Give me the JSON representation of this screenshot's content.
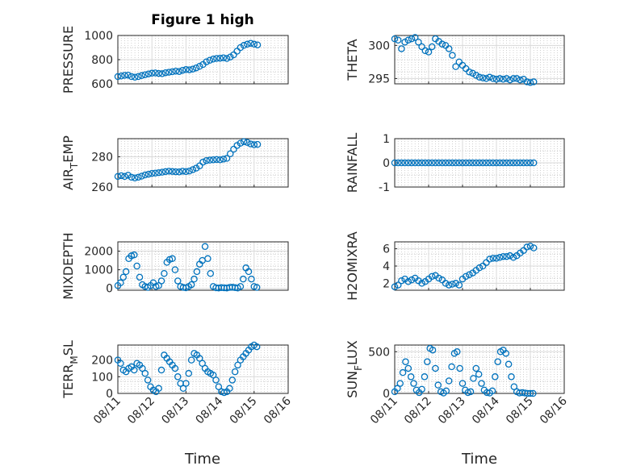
{
  "figure_title": "Figure 1 high",
  "colors": {
    "series": "#0072BD",
    "axis": "#262626"
  },
  "shared_x": {
    "label": "Time",
    "ticks": [
      {
        "value": 0,
        "label": "08/11"
      },
      {
        "value": 1,
        "label": "08/12"
      },
      {
        "value": 2,
        "label": "08/13"
      },
      {
        "value": 3,
        "label": "08/14"
      },
      {
        "value": 4,
        "label": "08/15"
      },
      {
        "value": 5,
        "label": "08/16"
      }
    ],
    "units": "days from 08/11"
  },
  "chart_data": [
    {
      "type": "scatter",
      "title": "Figure 1 high",
      "ylabel": "PRESSURE",
      "ylabel_parts": [
        "PRESSURE"
      ],
      "ylim": [
        600,
        1000
      ],
      "yticks": [
        600,
        800,
        1000
      ],
      "x": [
        0,
        0.1,
        0.2,
        0.3,
        0.4,
        0.5,
        0.6,
        0.7,
        0.8,
        0.9,
        1.0,
        1.1,
        1.2,
        1.3,
        1.4,
        1.5,
        1.6,
        1.7,
        1.8,
        1.9,
        2.0,
        2.1,
        2.2,
        2.3,
        2.4,
        2.5,
        2.6,
        2.7,
        2.8,
        2.9,
        3.0,
        3.1,
        3.2,
        3.3,
        3.4,
        3.5,
        3.6,
        3.7,
        3.8,
        3.9,
        4.0,
        4.1
      ],
      "y": [
        660,
        665,
        670,
        672,
        660,
        655,
        660,
        668,
        675,
        682,
        688,
        690,
        686,
        684,
        692,
        696,
        700,
        705,
        702,
        712,
        718,
        716,
        722,
        732,
        745,
        760,
        782,
        795,
        805,
        810,
        812,
        815,
        810,
        822,
        840,
        870,
        900,
        918,
        928,
        935,
        928,
        922
      ]
    },
    {
      "type": "scatter",
      "ylabel": "THETA",
      "ylabel_parts": [
        "THETA"
      ],
      "ylim": [
        294.2,
        301.5
      ],
      "yticks": [
        295,
        300
      ],
      "x": [
        0,
        0.1,
        0.2,
        0.3,
        0.4,
        0.5,
        0.6,
        0.7,
        0.8,
        0.9,
        1.0,
        1.1,
        1.2,
        1.3,
        1.4,
        1.5,
        1.6,
        1.7,
        1.8,
        1.9,
        2.0,
        2.1,
        2.2,
        2.3,
        2.4,
        2.5,
        2.6,
        2.7,
        2.8,
        2.9,
        3.0,
        3.1,
        3.2,
        3.3,
        3.4,
        3.5,
        3.6,
        3.7,
        3.8,
        3.9,
        4.0,
        4.1
      ],
      "y": [
        301,
        300.8,
        299.5,
        300.5,
        300.8,
        301,
        301.2,
        300.5,
        299.8,
        299.2,
        299,
        299.8,
        301,
        300.6,
        300.2,
        300,
        299.5,
        298.5,
        296.8,
        297.5,
        297,
        296.5,
        296,
        295.8,
        295.5,
        295.2,
        295.1,
        295,
        295.2,
        295,
        294.9,
        295,
        294.9,
        295,
        294.8,
        295,
        295,
        294.8,
        294.9,
        294.5,
        294.4,
        294.5
      ]
    },
    {
      "type": "scatter",
      "ylabel": "AIR_TEMP",
      "ylabel_parts": [
        "AIR",
        "T",
        "EMP"
      ],
      "ylim": [
        260,
        292
      ],
      "yticks": [
        260,
        280
      ],
      "x": [
        0,
        0.1,
        0.2,
        0.3,
        0.4,
        0.5,
        0.6,
        0.7,
        0.8,
        0.9,
        1.0,
        1.1,
        1.2,
        1.3,
        1.4,
        1.5,
        1.6,
        1.7,
        1.8,
        1.9,
        2.0,
        2.1,
        2.2,
        2.3,
        2.4,
        2.5,
        2.6,
        2.7,
        2.8,
        2.9,
        3.0,
        3.1,
        3.2,
        3.3,
        3.4,
        3.5,
        3.6,
        3.7,
        3.8,
        3.9,
        4.0,
        4.1
      ],
      "y": [
        267,
        267.5,
        267,
        267.8,
        266.5,
        266,
        266.5,
        267.2,
        268,
        268.5,
        269,
        269.2,
        269.5,
        269.8,
        270.2,
        270.5,
        270.3,
        270.1,
        270,
        270.5,
        270.2,
        270.6,
        271.5,
        272.5,
        274,
        276.5,
        277.5,
        277.8,
        278,
        278.2,
        278,
        278.5,
        279,
        282,
        285,
        287.5,
        289,
        290,
        289.5,
        288.5,
        288,
        288.2
      ]
    },
    {
      "type": "scatter",
      "ylabel": "RAINFALL",
      "ylabel_parts": [
        "RAINFALL"
      ],
      "ylim": [
        -1,
        1
      ],
      "yticks": [
        -1,
        0,
        1
      ],
      "x": [
        0,
        0.1,
        0.2,
        0.3,
        0.4,
        0.5,
        0.6,
        0.7,
        0.8,
        0.9,
        1.0,
        1.1,
        1.2,
        1.3,
        1.4,
        1.5,
        1.6,
        1.7,
        1.8,
        1.9,
        2.0,
        2.1,
        2.2,
        2.3,
        2.4,
        2.5,
        2.6,
        2.7,
        2.8,
        2.9,
        3.0,
        3.1,
        3.2,
        3.3,
        3.4,
        3.5,
        3.6,
        3.7,
        3.8,
        3.9,
        4.0,
        4.1
      ],
      "y": [
        0,
        0,
        0,
        0,
        0,
        0,
        0,
        0,
        0,
        0,
        0,
        0,
        0,
        0,
        0,
        0,
        0,
        0,
        0,
        0,
        0,
        0,
        0,
        0,
        0,
        0,
        0,
        0,
        0,
        0,
        0,
        0,
        0,
        0,
        0,
        0,
        0,
        0,
        0,
        0,
        0,
        0
      ]
    },
    {
      "type": "scatter",
      "ylabel": "MIXDEPTH",
      "ylabel_parts": [
        "MIXDEPTH"
      ],
      "ylim": [
        -100,
        2500
      ],
      "yticks": [
        0,
        1000,
        2000
      ],
      "x": [
        0,
        0.08,
        0.16,
        0.24,
        0.32,
        0.4,
        0.48,
        0.56,
        0.64,
        0.72,
        0.8,
        0.88,
        0.96,
        1.04,
        1.12,
        1.2,
        1.28,
        1.36,
        1.44,
        1.52,
        1.6,
        1.68,
        1.76,
        1.84,
        1.92,
        2.0,
        2.08,
        2.16,
        2.24,
        2.32,
        2.4,
        2.48,
        2.56,
        2.64,
        2.72,
        2.8,
        2.88,
        2.96,
        3.04,
        3.12,
        3.2,
        3.28,
        3.36,
        3.44,
        3.52,
        3.6,
        3.68,
        3.76,
        3.84,
        3.92,
        4.0,
        4.08
      ],
      "y": [
        150,
        300,
        600,
        900,
        1600,
        1750,
        1800,
        1200,
        600,
        200,
        100,
        50,
        150,
        300,
        100,
        150,
        400,
        800,
        1400,
        1550,
        1600,
        1000,
        400,
        100,
        50,
        30,
        100,
        200,
        500,
        900,
        1300,
        1500,
        2250,
        1600,
        800,
        100,
        30,
        20,
        40,
        30,
        20,
        50,
        60,
        40,
        20,
        100,
        500,
        1100,
        900,
        500,
        100,
        50
      ]
    },
    {
      "type": "scatter",
      "ylabel": "H2OMIXRA",
      "ylabel_parts": [
        "H2OMIXRA"
      ],
      "ylim": [
        1.2,
        6.8
      ],
      "yticks": [
        2,
        4,
        6
      ],
      "x": [
        0,
        0.1,
        0.2,
        0.3,
        0.4,
        0.5,
        0.6,
        0.7,
        0.8,
        0.9,
        1.0,
        1.1,
        1.2,
        1.3,
        1.4,
        1.5,
        1.6,
        1.7,
        1.8,
        1.9,
        2.0,
        2.1,
        2.2,
        2.3,
        2.4,
        2.5,
        2.6,
        2.7,
        2.8,
        2.9,
        3.0,
        3.1,
        3.2,
        3.3,
        3.4,
        3.5,
        3.6,
        3.7,
        3.8,
        3.9,
        4.0,
        4.1
      ],
      "y": [
        1.6,
        1.8,
        2.3,
        2.5,
        2.2,
        2.4,
        2.6,
        2.3,
        2.0,
        2.2,
        2.5,
        2.8,
        2.9,
        2.6,
        2.4,
        2.0,
        1.8,
        1.9,
        2.0,
        1.8,
        2.5,
        2.8,
        3.0,
        3.2,
        3.5,
        3.8,
        4.0,
        4.4,
        4.8,
        4.9,
        4.9,
        5.0,
        5.1,
        5.1,
        5.2,
        5.0,
        5.2,
        5.5,
        5.8,
        6.2,
        6.3,
        6.1
      ]
    },
    {
      "type": "scatter",
      "ylabel": "TERR_MSL",
      "ylabel_parts": [
        "TERR",
        "M",
        "SL"
      ],
      "ylim": [
        0,
        290
      ],
      "yticks": [
        0,
        100,
        200
      ],
      "x": [
        0,
        0.08,
        0.16,
        0.24,
        0.32,
        0.4,
        0.48,
        0.56,
        0.64,
        0.72,
        0.8,
        0.88,
        0.96,
        1.04,
        1.12,
        1.2,
        1.28,
        1.36,
        1.44,
        1.52,
        1.6,
        1.68,
        1.76,
        1.84,
        1.92,
        2.0,
        2.08,
        2.16,
        2.24,
        2.32,
        2.4,
        2.48,
        2.56,
        2.64,
        2.72,
        2.8,
        2.88,
        2.96,
        3.04,
        3.12,
        3.2,
        3.28,
        3.36,
        3.44,
        3.52,
        3.6,
        3.68,
        3.76,
        3.84,
        3.92,
        4.0,
        4.08
      ],
      "y": [
        200,
        180,
        140,
        130,
        150,
        160,
        140,
        180,
        170,
        150,
        120,
        80,
        40,
        20,
        10,
        30,
        140,
        230,
        210,
        190,
        170,
        150,
        100,
        60,
        30,
        60,
        120,
        200,
        240,
        230,
        210,
        180,
        150,
        130,
        120,
        110,
        80,
        40,
        10,
        5,
        10,
        30,
        80,
        130,
        170,
        200,
        220,
        240,
        260,
        280,
        290,
        280
      ]
    },
    {
      "type": "scatter",
      "ylabel": "SUN_FLUX",
      "ylabel_parts": [
        "SUN",
        "F",
        "LUX"
      ],
      "ylim": [
        0,
        580
      ],
      "yticks": [
        0,
        500
      ],
      "x": [
        0,
        0.08,
        0.16,
        0.24,
        0.32,
        0.4,
        0.48,
        0.56,
        0.64,
        0.72,
        0.8,
        0.88,
        0.96,
        1.04,
        1.12,
        1.2,
        1.28,
        1.36,
        1.44,
        1.52,
        1.6,
        1.68,
        1.76,
        1.84,
        1.92,
        2.0,
        2.08,
        2.16,
        2.24,
        2.32,
        2.4,
        2.48,
        2.56,
        2.64,
        2.72,
        2.8,
        2.88,
        2.96,
        3.04,
        3.12,
        3.2,
        3.28,
        3.36,
        3.44,
        3.52,
        3.6,
        3.68,
        3.76,
        3.84,
        3.92,
        4.0,
        4.08
      ],
      "y": [
        20,
        60,
        120,
        250,
        380,
        300,
        200,
        120,
        40,
        10,
        50,
        200,
        380,
        540,
        520,
        300,
        100,
        20,
        5,
        30,
        150,
        320,
        480,
        500,
        300,
        120,
        40,
        10,
        20,
        180,
        300,
        230,
        120,
        40,
        10,
        5,
        30,
        200,
        380,
        500,
        520,
        480,
        350,
        200,
        80,
        20,
        5,
        10,
        5,
        0,
        0,
        0
      ]
    }
  ]
}
